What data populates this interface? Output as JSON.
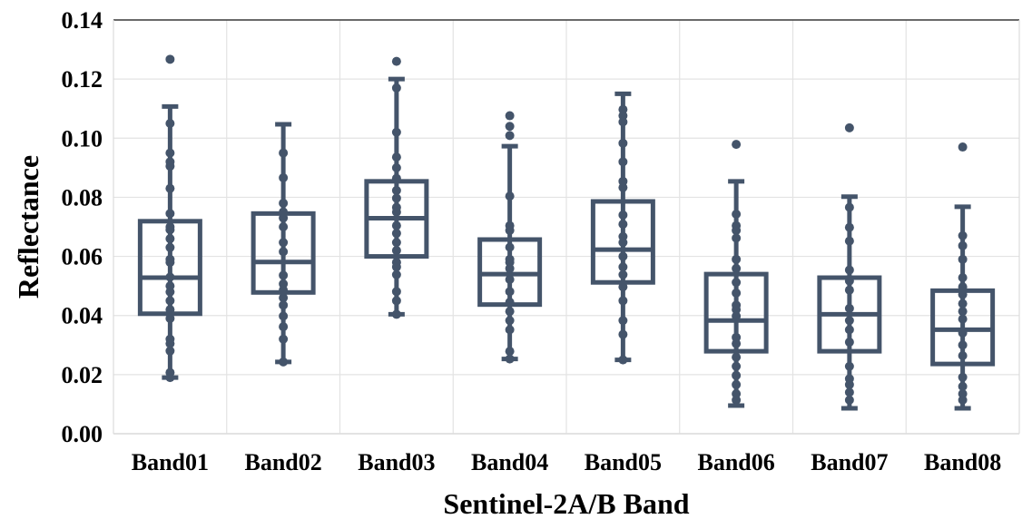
{
  "chart_data": {
    "type": "box",
    "title": "",
    "xlabel": "Sentinel-2A/B Band",
    "ylabel": "Reflectance",
    "ylim": [
      0,
      0.14
    ],
    "yticks": [
      "0.00",
      "0.02",
      "0.04",
      "0.06",
      "0.08",
      "0.10",
      "0.12",
      "0.14"
    ],
    "grid": true,
    "color": "#44546a",
    "categories": [
      "Band01",
      "Band02",
      "Band03",
      "Band04",
      "Band05",
      "Band06",
      "Band07",
      "Band08"
    ],
    "boxes": [
      {
        "whisker_low": 0.019,
        "q1": 0.0406,
        "median": 0.0528,
        "q3": 0.0719,
        "whisker_high": 0.1107,
        "outliers": [
          0.1267
        ],
        "points": [
          0.105,
          0.095,
          0.092,
          0.0905,
          0.083,
          0.0745,
          0.07,
          0.069,
          0.066,
          0.063,
          0.059,
          0.058,
          0.053,
          0.05,
          0.048,
          0.045,
          0.042,
          0.039,
          0.032,
          0.0305,
          0.028,
          0.0207,
          0.019
        ]
      },
      {
        "whisker_low": 0.0243,
        "q1": 0.0478,
        "median": 0.0581,
        "q3": 0.0745,
        "whisker_high": 0.1047,
        "outliers": [],
        "points": [
          0.095,
          0.0866,
          0.078,
          0.075,
          0.073,
          0.07,
          0.0647,
          0.0616,
          0.0536,
          0.0507,
          0.0486,
          0.046,
          0.0435,
          0.0398,
          0.0362,
          0.032,
          0.0243
        ]
      },
      {
        "whisker_low": 0.0404,
        "q1": 0.06,
        "median": 0.0729,
        "q3": 0.0854,
        "whisker_high": 0.12,
        "outliers": [
          0.126
        ],
        "points": [
          0.117,
          0.102,
          0.0936,
          0.09,
          0.0864,
          0.0823,
          0.0797,
          0.0766,
          0.075,
          0.0704,
          0.0678,
          0.0647,
          0.062,
          0.058,
          0.0564,
          0.0538,
          0.0481,
          0.045,
          0.0404
        ]
      },
      {
        "whisker_low": 0.0253,
        "q1": 0.0437,
        "median": 0.054,
        "q3": 0.0657,
        "whisker_high": 0.0973,
        "outliers": [
          0.1076,
          0.104,
          0.1009
        ],
        "points": [
          0.0804,
          0.0704,
          0.0688,
          0.0631,
          0.059,
          0.058,
          0.0559,
          0.0522,
          0.0481,
          0.0445,
          0.0414,
          0.0383,
          0.0352,
          0.0279,
          0.0253
        ]
      },
      {
        "whisker_low": 0.025,
        "q1": 0.0512,
        "median": 0.0623,
        "q3": 0.0786,
        "whisker_high": 0.115,
        "outliers": [],
        "points": [
          0.1097,
          0.1076,
          0.1055,
          0.0983,
          0.092,
          0.0854,
          0.0833,
          0.074,
          0.0709,
          0.0667,
          0.0647,
          0.06,
          0.0564,
          0.0538,
          0.0497,
          0.045,
          0.0383,
          0.0336,
          0.025
        ]
      },
      {
        "whisker_low": 0.0095,
        "q1": 0.0279,
        "median": 0.0383,
        "q3": 0.054,
        "whisker_high": 0.0854,
        "outliers": [
          0.0979
        ],
        "points": [
          0.0743,
          0.0704,
          0.0688,
          0.0662,
          0.059,
          0.0559,
          0.0512,
          0.0476,
          0.0435,
          0.042,
          0.0398,
          0.0326,
          0.0305,
          0.0259,
          0.0228,
          0.0197,
          0.0166,
          0.0135,
          0.0114
        ]
      },
      {
        "whisker_low": 0.0086,
        "q1": 0.0279,
        "median": 0.0404,
        "q3": 0.0528,
        "whisker_high": 0.0802,
        "outliers": [
          0.1035
        ],
        "points": [
          0.0766,
          0.0698,
          0.0652,
          0.0554,
          0.0517,
          0.0486,
          0.0424,
          0.0383,
          0.0352,
          0.031,
          0.0228,
          0.0186,
          0.0166,
          0.014,
          0.0114
        ]
      },
      {
        "whisker_low": 0.0086,
        "q1": 0.0236,
        "median": 0.0352,
        "q3": 0.0484,
        "whisker_high": 0.0768,
        "outliers": [
          0.097
        ],
        "points": [
          0.067,
          0.0636,
          0.059,
          0.0528,
          0.0497,
          0.0471,
          0.044,
          0.0414,
          0.0388,
          0.0341,
          0.03,
          0.0264,
          0.0191,
          0.016,
          0.0135,
          0.0114
        ]
      }
    ]
  }
}
